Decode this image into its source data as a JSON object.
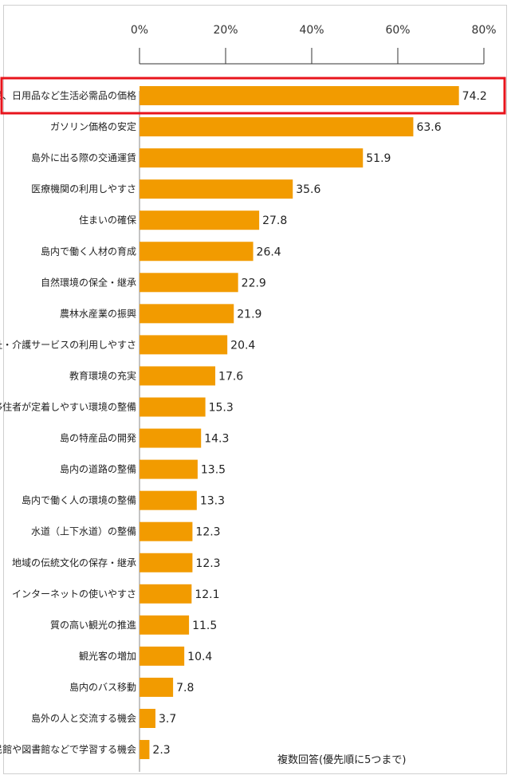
{
  "chart_data": {
    "type": "bar",
    "orientation": "horizontal",
    "note": "複数回答(優先順に5つまで)",
    "xlim": [
      0,
      80
    ],
    "ticks": [
      "0%",
      "20%",
      "40%",
      "60%",
      "80%"
    ],
    "tick_values": [
      0,
      20,
      40,
      60,
      80
    ],
    "bar_color": "#f29b00",
    "highlight_color": "#e8141c",
    "highlight_index": 0,
    "categories": [
      "食品、日用品など生活必需品の価格",
      "ガソリン価格の安定",
      "島外に出る際の交通運賃",
      "医療機関の利用しやすさ",
      "住まいの確保",
      "島内で働く人材の育成",
      "自然環境の保全・継承",
      "農林水産業の振興",
      "福祉・介護サービスの利用しやすさ",
      "教育環境の充実",
      "移住者が定着しやすい環境の整備",
      "島の特産品の開発",
      "島内の道路の整備",
      "島内で働く人の環境の整備",
      "水道（上下水道）の整備",
      "地域の伝統文化の保存・継承",
      "インターネットの使いやすさ",
      "質の高い観光の推進",
      "観光客の増加",
      "島内のバス移動",
      "島外の人と交流する機会",
      "公民館や図書館などで学習する機会"
    ],
    "values": [
      74.2,
      63.6,
      51.9,
      35.6,
      27.8,
      26.4,
      22.9,
      21.9,
      20.4,
      17.6,
      15.3,
      14.3,
      13.5,
      13.3,
      12.3,
      12.3,
      12.1,
      11.5,
      10.4,
      7.8,
      3.7,
      2.3
    ],
    "value_labels": [
      "74.2",
      "63.6",
      "51.9",
      "35.6",
      "27.8",
      "26.4",
      "22.9",
      "21.9",
      "20.4",
      "17.6",
      "15.3",
      "14.3",
      "13.5",
      "13.3",
      "12.3",
      "12.3",
      "12.1",
      "11.5",
      "10.4",
      "7.8",
      "3.7",
      "2.3"
    ]
  }
}
